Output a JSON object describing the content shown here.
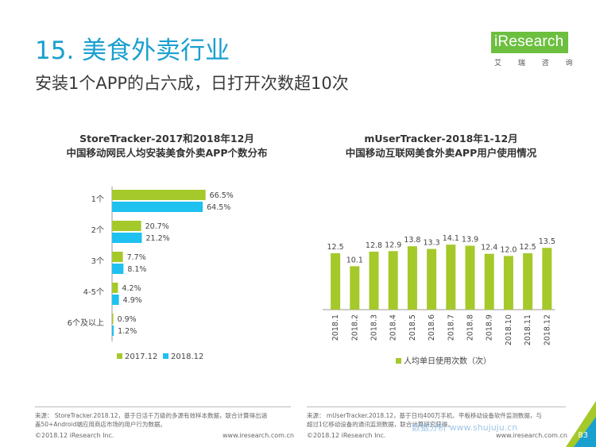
{
  "header": {
    "title": "15. 美食外卖行业",
    "subtitle": "安装1个APP的占六成，日打开次数超10次"
  },
  "logo": {
    "brand": "iResearch",
    "sub": "艾 瑞 咨 询"
  },
  "colors": {
    "green": "#a5c92a",
    "blue": "#1ec1ef",
    "title": "#1aa0cf"
  },
  "charts": {
    "left": {
      "title_line1": "StoreTracker-2017和2018年12月",
      "title_line2": "中国移动网民人均安装美食外卖APP个数分布"
    },
    "right": {
      "title_line1": "mUserTracker-2018年1-12月",
      "title_line2": "中国移动互联网美食外卖APP用户使用情况"
    }
  },
  "chart_data": [
    {
      "type": "bar",
      "orientation": "horizontal",
      "title": "StoreTracker-2017和2018年12月 中国移动网民人均安装美食外卖APP个数分布",
      "categories": [
        "1个",
        "2个",
        "3个",
        "4-5个",
        "6个及以上"
      ],
      "series": [
        {
          "name": "2017.12",
          "values": [
            66.5,
            20.7,
            7.7,
            4.2,
            0.9
          ],
          "labels": [
            "66.5%",
            "20.7%",
            "7.7%",
            "4.2%",
            "0.9%"
          ],
          "color": "#a5c92a"
        },
        {
          "name": "2018.12",
          "values": [
            64.5,
            21.2,
            8.1,
            4.9,
            1.2
          ],
          "labels": [
            "64.5%",
            "21.2%",
            "8.1%",
            "4.9%",
            "1.2%"
          ],
          "color": "#1ec1ef"
        }
      ],
      "unit": "%",
      "xlim": [
        0,
        70
      ],
      "legend": "bottom"
    },
    {
      "type": "bar",
      "title": "mUserTracker-2018年1-12月 中国移动互联网美食外卖APP用户使用情况",
      "categories": [
        "2018.1",
        "2018.2",
        "2018.3",
        "2018.4",
        "2018.5",
        "2018.6",
        "2018.7",
        "2018.8",
        "2018.9",
        "2018.10",
        "2018.11",
        "2018.12"
      ],
      "series": [
        {
          "name": "人均单日使用次数（次）",
          "values": [
            12.5,
            10.1,
            12.8,
            12.9,
            13.8,
            13.3,
            14.1,
            13.9,
            12.4,
            12.0,
            12.5,
            13.5
          ],
          "color": "#a5c92a"
        }
      ],
      "ylim": [
        0,
        16
      ],
      "legend": "bottom"
    }
  ],
  "footer": {
    "left_source_line1": "来源： StoreTracker.2018.12，基于日活千万级的多源有效样本数据，联合计算得出涵",
    "left_source_line2": "盖50+Android端应用商店市场的用户行为数据。",
    "right_source_line1": "来源： mUserTracker.2018.12，基于日均400万手机、平板移动设备软件监测数据，与",
    "right_source_line2": "超过1亿移动设备的通讯监测数据，联合计算研究获得。",
    "copyright": "©2018.12 iResearch Inc.",
    "website": "www.iresearch.com.cn",
    "page_number": "83",
    "watermark": "数据分析  www.shujuju.cn"
  }
}
